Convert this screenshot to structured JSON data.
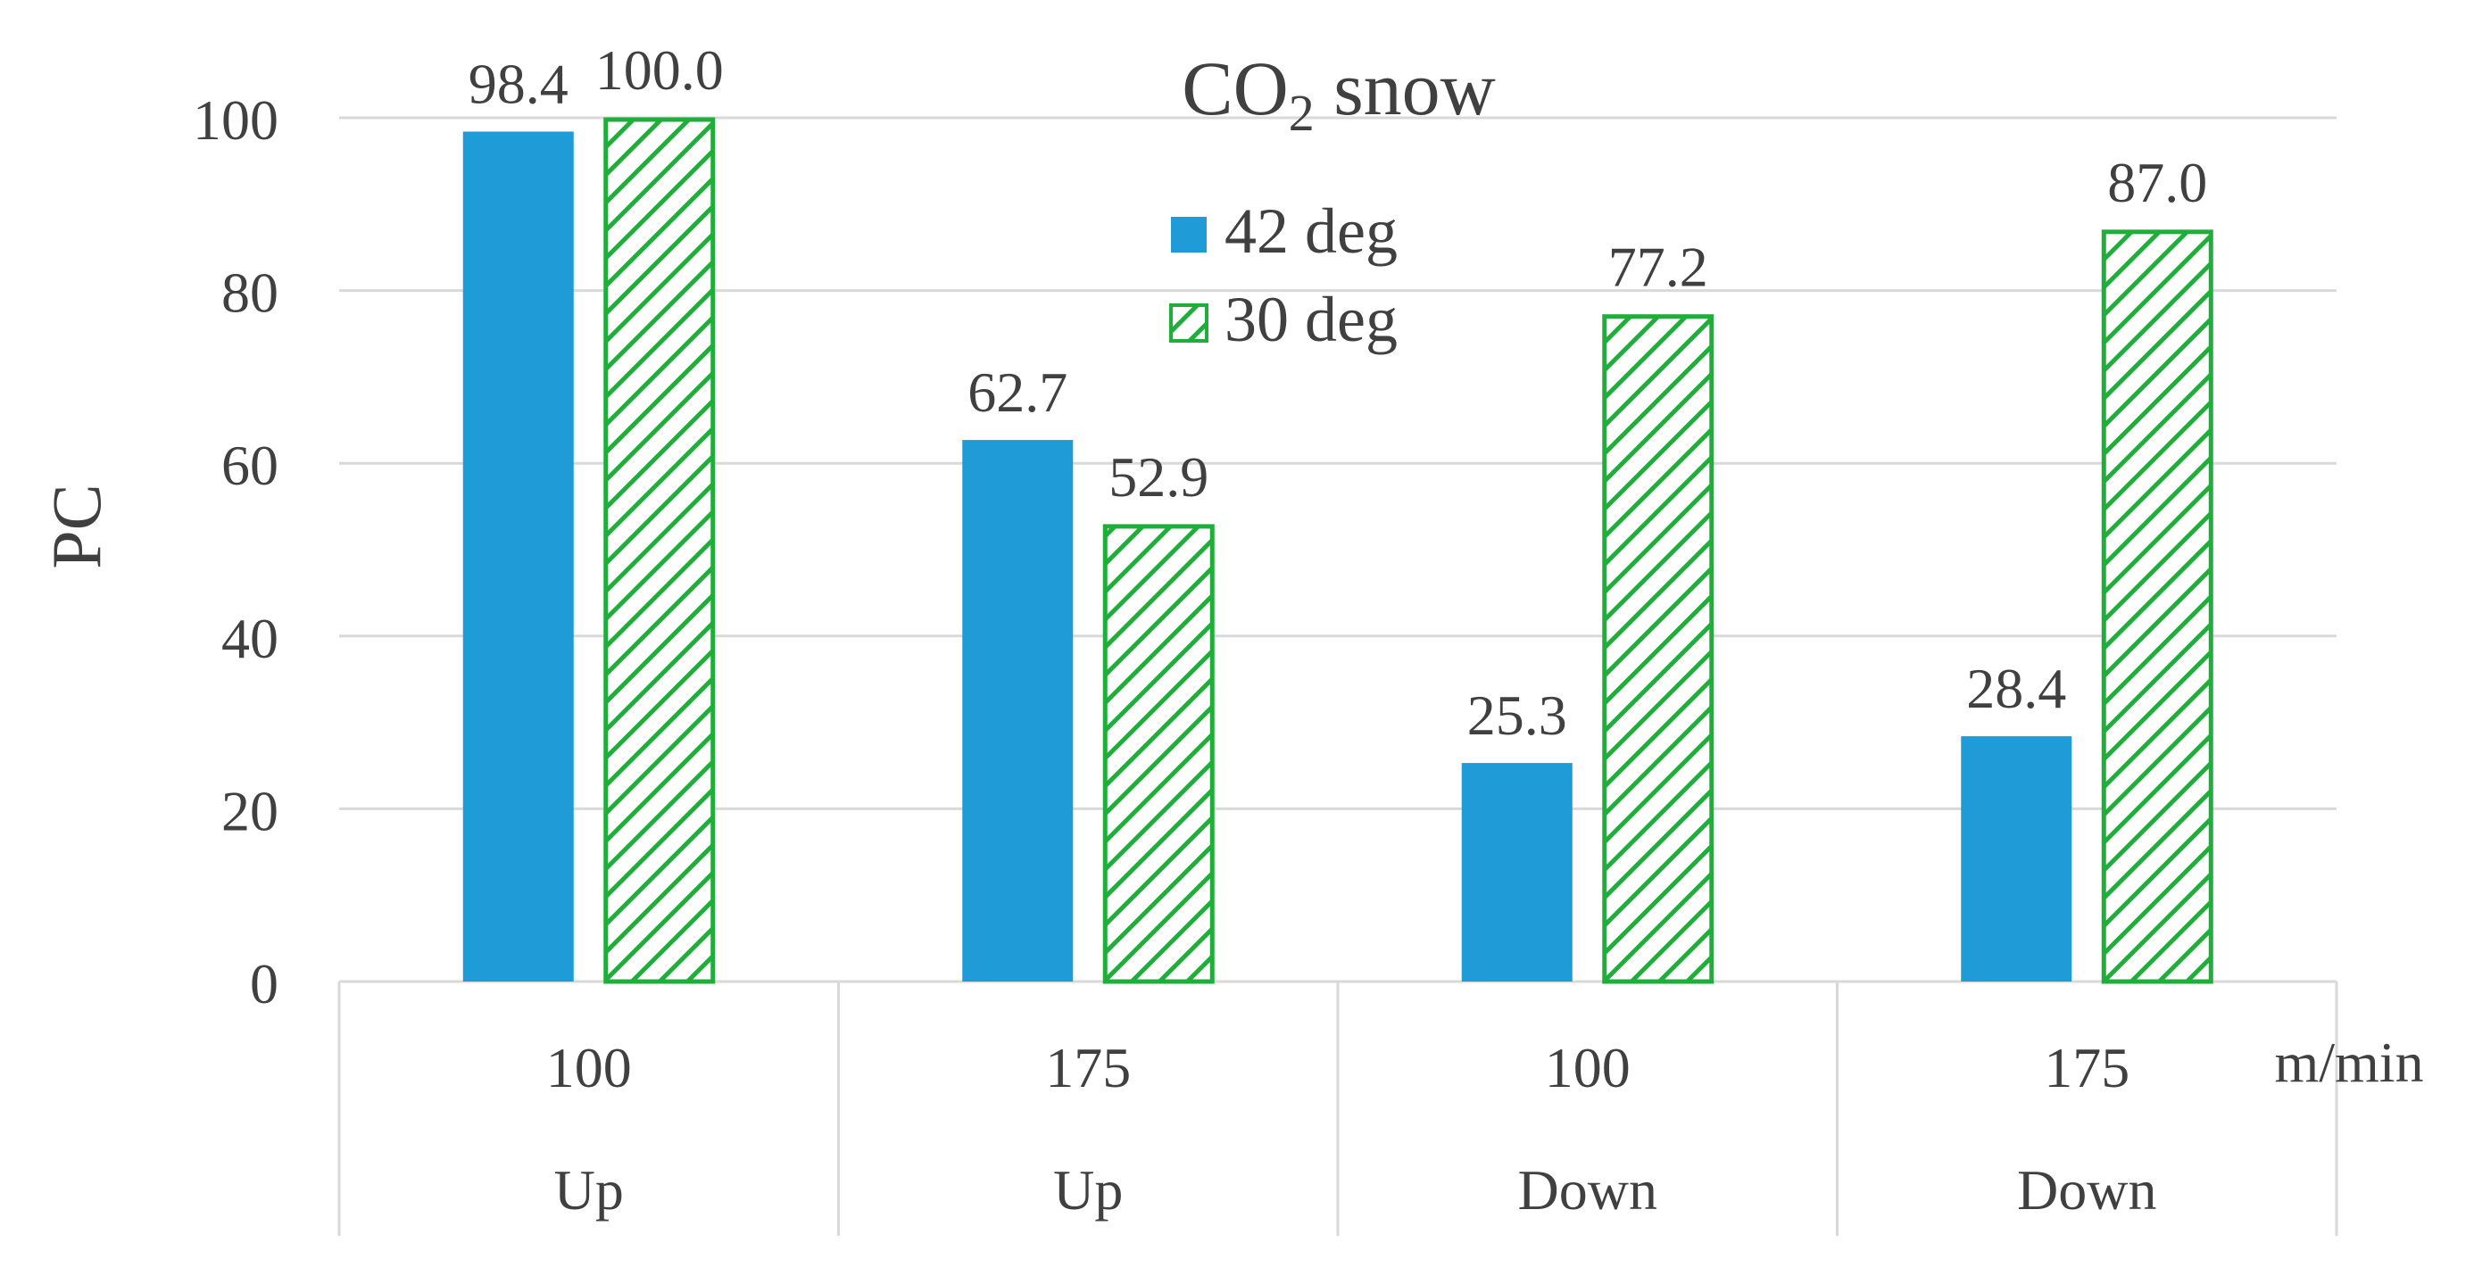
{
  "chart_data": {
    "type": "bar",
    "title": "CO",
    "title_sub": "2",
    "title_rest": " snow",
    "ylabel": "PC",
    "xlabel": "m/min",
    "ylim": [
      0,
      100
    ],
    "yticks": [
      0,
      20,
      40,
      60,
      80,
      100
    ],
    "grid": true,
    "legend_position": "top-center",
    "categories": [
      {
        "speed": "100",
        "direction": "Up"
      },
      {
        "speed": "175",
        "direction": "Up"
      },
      {
        "speed": "100",
        "direction": "Down"
      },
      {
        "speed": "175",
        "direction": "Down"
      }
    ],
    "series": [
      {
        "name": "42 deg",
        "style": "solid",
        "values": [
          98.4,
          62.7,
          25.3,
          28.4
        ],
        "labels": [
          "98.4",
          "62.7",
          "25.3",
          "28.4"
        ]
      },
      {
        "name": "30 deg",
        "style": "hatched",
        "values": [
          100.0,
          52.9,
          77.2,
          87.0
        ],
        "labels": [
          "100.0",
          "52.9",
          "77.2",
          "87.0"
        ]
      }
    ]
  },
  "colors": {
    "series_42": "#1f9bd7",
    "series_30": "#1fae3a",
    "grid": "#d9d9d9",
    "text": "#404040"
  }
}
